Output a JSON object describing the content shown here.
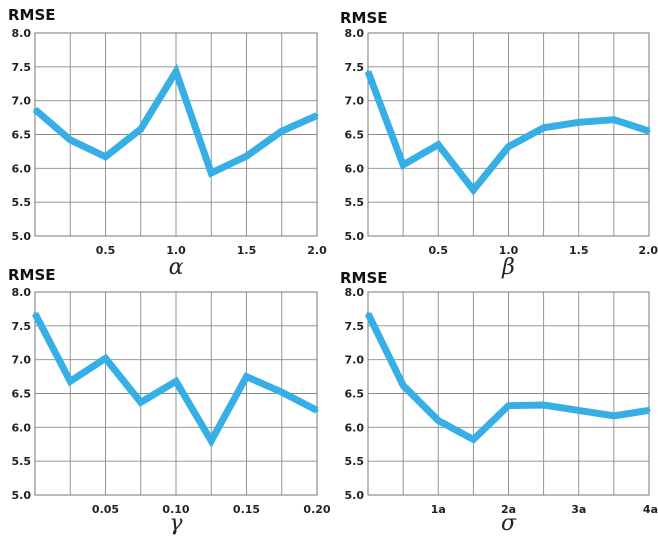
{
  "series_color": "#36aee6",
  "chart_data": [
    {
      "type": "line",
      "ylabel": "RMSE",
      "xlabel": "α",
      "xlim": [
        0,
        2.0
      ],
      "ylim": [
        5.0,
        8.0
      ],
      "xticks": [
        0.5,
        1.0,
        1.5,
        2.0
      ],
      "xtick_labels": [
        "0.5",
        "1.0",
        "1.5",
        "2.0"
      ],
      "yticks": [
        5.0,
        5.5,
        6.0,
        6.5,
        7.0,
        7.5,
        8.0
      ],
      "ytick_labels": [
        "5.0",
        "5.5",
        "6.0",
        "6.5",
        "7.0",
        "7.5",
        "8.0"
      ],
      "grid": true,
      "x": [
        0,
        0.25,
        0.5,
        0.75,
        1.0,
        1.25,
        1.5,
        1.75,
        2.0
      ],
      "y": [
        6.87,
        6.42,
        6.17,
        6.58,
        7.43,
        5.93,
        6.18,
        6.55,
        6.78
      ]
    },
    {
      "type": "line",
      "ylabel": "RMSE",
      "xlabel": "β",
      "xlim": [
        0,
        2.0
      ],
      "ylim": [
        5.0,
        8.0
      ],
      "xticks": [
        0.5,
        1.0,
        1.5,
        2.0
      ],
      "xtick_labels": [
        "0.5",
        "1.0",
        "1.5",
        "2.0"
      ],
      "yticks": [
        5.0,
        5.5,
        6.0,
        6.5,
        7.0,
        7.5,
        8.0
      ],
      "ytick_labels": [
        "5.0",
        "5.5",
        "6.0",
        "6.5",
        "7.0",
        "7.5",
        "8.0"
      ],
      "grid": true,
      "x": [
        0,
        0.25,
        0.5,
        0.75,
        1.0,
        1.25,
        1.5,
        1.75,
        2.0
      ],
      "y": [
        7.43,
        6.05,
        6.35,
        5.68,
        6.32,
        6.6,
        6.68,
        6.72,
        6.55
      ]
    },
    {
      "type": "line",
      "ylabel": "RMSE",
      "xlabel": "γ",
      "xlim": [
        0,
        0.2
      ],
      "ylim": [
        5.0,
        8.0
      ],
      "xticks": [
        0.05,
        0.1,
        0.15,
        0.2
      ],
      "xtick_labels": [
        "0.05",
        "0.10",
        "0.15",
        "0.20"
      ],
      "yticks": [
        5.0,
        5.5,
        6.0,
        6.5,
        7.0,
        7.5,
        8.0
      ],
      "ytick_labels": [
        "5.0",
        "5.5",
        "6.0",
        "6.5",
        "7.0",
        "7.5",
        "8.0"
      ],
      "grid": true,
      "x": [
        0,
        0.025,
        0.05,
        0.075,
        0.1,
        0.125,
        0.15,
        0.175,
        0.2
      ],
      "y": [
        7.68,
        6.68,
        7.02,
        6.37,
        6.68,
        5.8,
        6.75,
        6.52,
        6.25
      ]
    },
    {
      "type": "line",
      "ylabel": "RMSE",
      "xlabel": "σ",
      "xlim": [
        0,
        4
      ],
      "ylim": [
        5.0,
        8.0
      ],
      "xticks": [
        1,
        2,
        3,
        4
      ],
      "xtick_labels": [
        "1a",
        "2a",
        "3a",
        "4a"
      ],
      "yticks": [
        5.0,
        5.5,
        6.0,
        6.5,
        7.0,
        7.5,
        8.0
      ],
      "ytick_labels": [
        "5.0",
        "5.5",
        "6.0",
        "6.5",
        "7.0",
        "7.5",
        "8.0"
      ],
      "grid": true,
      "x": [
        0,
        0.5,
        1.0,
        1.5,
        2.0,
        2.5,
        3.0,
        3.5,
        4.0
      ],
      "y": [
        7.68,
        6.62,
        6.1,
        5.82,
        6.32,
        6.33,
        6.25,
        6.17,
        6.25
      ]
    }
  ]
}
